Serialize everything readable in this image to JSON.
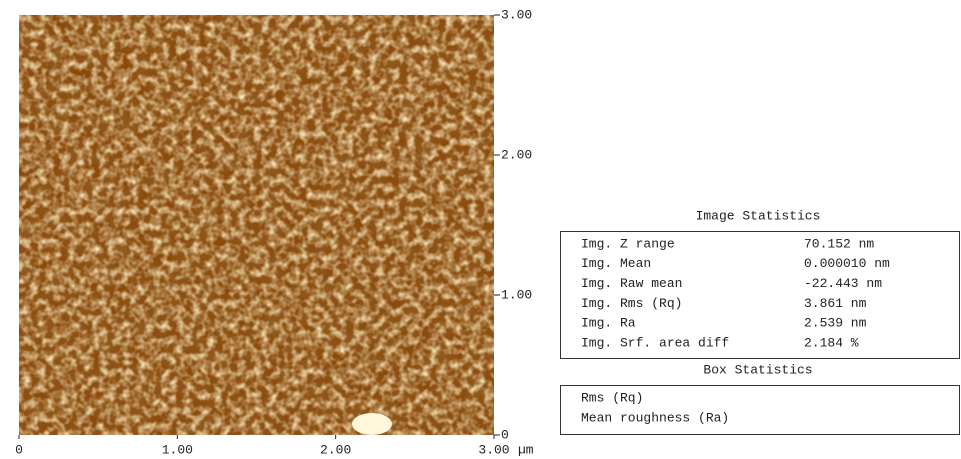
{
  "image": {
    "x_axis": {
      "range": [
        0,
        3
      ],
      "ticks": [
        0,
        {
          "value": 1,
          "label": "1.00"
        },
        {
          "value": 2,
          "label": "2.00"
        },
        {
          "value": 3,
          "label": "3.00"
        }
      ],
      "unit": "µm"
    },
    "y_axis": {
      "range": [
        0,
        3
      ],
      "ticks": [
        0,
        {
          "value": 1,
          "label": "1.00"
        },
        {
          "value": 2,
          "label": "2.00"
        },
        {
          "value": 3,
          "label": "3.00"
        }
      ]
    }
  },
  "image_statistics": {
    "title": "Image Statistics",
    "rows": [
      {
        "label": "Img. Z range",
        "value": "70.152 nm"
      },
      {
        "label": "Img. Mean",
        "value": "0.000010 nm"
      },
      {
        "label": "Img. Raw mean",
        "value": "-22.443 nm"
      },
      {
        "label": "Img. Rms (Rq)",
        "value": "3.861 nm"
      },
      {
        "label": "Img. Ra",
        "value": "2.539 nm"
      },
      {
        "label": "Img. Srf. area diff",
        "value": "2.184 %"
      }
    ]
  },
  "box_statistics": {
    "title": "Box Statistics",
    "rows": [
      {
        "label": "Rms (Rq)"
      },
      {
        "label": "Mean roughness (Ra)"
      }
    ]
  }
}
